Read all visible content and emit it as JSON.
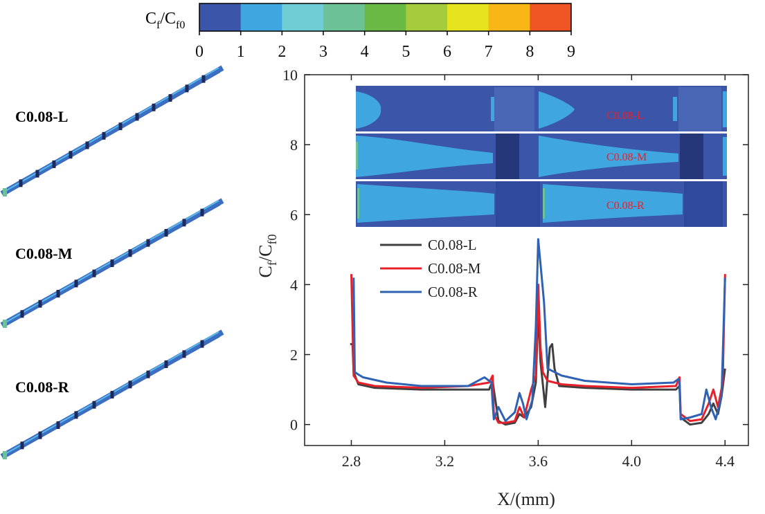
{
  "colorbar": {
    "title_main": "C",
    "title_sub1": "f",
    "title_sep": "/C",
    "title_sub2": "f0",
    "ticks": [
      "0",
      "1",
      "2",
      "3",
      "4",
      "5",
      "6",
      "7",
      "8",
      "9"
    ],
    "colors": [
      "#3b55a8",
      "#40a6df",
      "#6fcdd6",
      "#6cc296",
      "#6ab944",
      "#a3cb3c",
      "#e4e31d",
      "#f9b617",
      "#ef5522"
    ]
  },
  "models": [
    {
      "label": "C0.08-L"
    },
    {
      "label": "C0.08-M"
    },
    {
      "label": "C0.08-R"
    }
  ],
  "inset": {
    "panels": [
      {
        "label": "C0.08-L"
      },
      {
        "label": "C0.08-M"
      },
      {
        "label": "C0.08-R"
      }
    ]
  },
  "chart_data": {
    "type": "line",
    "xlabel": "X/(mm)",
    "ylabel_main": "C",
    "ylabel_sub1": "f",
    "ylabel_sep": "/C",
    "ylabel_sub2": "f0",
    "xlim": [
      2.6,
      4.5
    ],
    "ylim": [
      -0.6,
      10
    ],
    "xticks": [
      2.8,
      3.2,
      3.6,
      4.0,
      4.4
    ],
    "xtick_labels": [
      "2.8",
      "3.2",
      "3.6",
      "4.0",
      "4.4"
    ],
    "yticks": [
      0,
      2,
      4,
      6,
      8,
      10
    ],
    "ytick_labels": [
      "0",
      "2",
      "4",
      "6",
      "8",
      "10"
    ],
    "legend_position": "center",
    "series": [
      {
        "name": "C0.08-L",
        "color": "#404040",
        "x": [
          2.795,
          2.805,
          2.81,
          2.83,
          2.9,
          3.1,
          3.3,
          3.39,
          3.405,
          3.41,
          3.43,
          3.46,
          3.5,
          3.52,
          3.54,
          3.57,
          3.59,
          3.6,
          3.61,
          3.63,
          3.65,
          3.66,
          3.67,
          3.69,
          3.8,
          4.0,
          4.19,
          4.205,
          4.21,
          4.25,
          4.3,
          4.33,
          4.35,
          4.37,
          4.385,
          4.4
        ],
        "y": [
          2.3,
          2.3,
          1.5,
          1.15,
          1.05,
          1.0,
          1.0,
          1.0,
          1.25,
          1.0,
          0.1,
          0.0,
          0.05,
          0.3,
          0.2,
          0.5,
          1.2,
          3.3,
          1.8,
          0.5,
          2.2,
          2.3,
          1.6,
          1.1,
          1.05,
          1.0,
          1.0,
          1.1,
          0.2,
          0.0,
          0.05,
          0.3,
          0.6,
          0.3,
          0.8,
          1.6
        ]
      },
      {
        "name": "C0.08-M",
        "color": "#e8202a",
        "x": [
          2.8,
          2.81,
          2.83,
          2.9,
          3.1,
          3.3,
          3.39,
          3.405,
          3.41,
          3.43,
          3.46,
          3.5,
          3.52,
          3.54,
          3.57,
          3.59,
          3.6,
          3.61,
          3.62,
          3.64,
          3.7,
          3.8,
          4.0,
          4.19,
          4.205,
          4.21,
          4.25,
          4.3,
          4.33,
          4.35,
          4.37,
          4.39,
          4.4
        ],
        "y": [
          4.3,
          1.4,
          1.2,
          1.1,
          1.05,
          1.1,
          1.2,
          1.4,
          0.3,
          0.05,
          0.05,
          0.1,
          0.5,
          0.2,
          1.0,
          1.4,
          4.0,
          2.2,
          1.5,
          1.25,
          1.15,
          1.1,
          1.05,
          1.1,
          1.35,
          0.3,
          0.1,
          0.15,
          0.6,
          1.0,
          0.5,
          1.2,
          4.3
        ]
      },
      {
        "name": "C0.08-R",
        "color": "#2f62b2",
        "x": [
          2.81,
          2.815,
          2.825,
          2.85,
          2.95,
          3.1,
          3.3,
          3.37,
          3.4,
          3.405,
          3.41,
          3.43,
          3.46,
          3.5,
          3.52,
          3.535,
          3.55,
          3.575,
          3.59,
          3.6,
          3.625,
          3.64,
          3.7,
          3.8,
          4.0,
          4.18,
          4.2,
          4.205,
          4.21,
          4.25,
          4.3,
          4.32,
          4.34,
          4.36,
          4.385,
          4.4
        ],
        "y": [
          4.2,
          1.5,
          1.45,
          1.35,
          1.2,
          1.1,
          1.1,
          1.35,
          1.2,
          0.6,
          0.15,
          0.5,
          0.1,
          0.35,
          0.9,
          0.6,
          0.15,
          0.7,
          2.8,
          5.3,
          3.5,
          1.6,
          1.4,
          1.25,
          1.15,
          1.2,
          1.3,
          1.2,
          0.15,
          0.2,
          0.3,
          1.0,
          0.5,
          0.15,
          0.8,
          4.2
        ]
      }
    ]
  }
}
